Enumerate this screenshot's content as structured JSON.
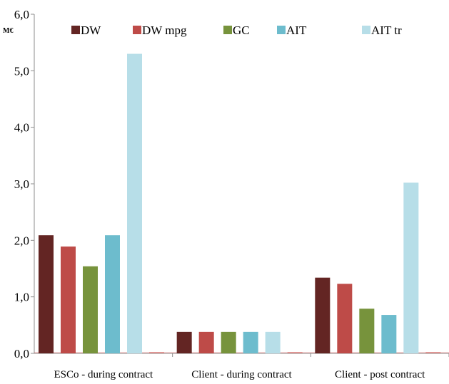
{
  "chart_data": {
    "type": "bar",
    "ylabel": "M€",
    "ylim": [
      0,
      6
    ],
    "yticks": [
      "0,0",
      "1,0",
      "2,0",
      "3,0",
      "4,0",
      "5,0",
      "6,0"
    ],
    "categories": [
      "ESCo - during contract",
      "Client - during contract",
      "Client - post contract"
    ],
    "series": [
      {
        "name": "DW",
        "color": "#632523",
        "values": [
          2.09,
          0.38,
          1.34
        ]
      },
      {
        "name": "DW mpg",
        "color": "#be4b48",
        "values": [
          1.89,
          0.38,
          1.23
        ]
      },
      {
        "name": "GC",
        "color": "#77933c",
        "values": [
          1.54,
          0.38,
          0.79
        ]
      },
      {
        "name": "AIT",
        "color": "#6dbccd",
        "values": [
          2.09,
          0.38,
          0.68
        ]
      },
      {
        "name": "AIT tr",
        "color": "#b7dee8",
        "values": [
          5.3,
          0.38,
          3.02
        ]
      }
    ],
    "legend_position": "top",
    "grid": false
  }
}
